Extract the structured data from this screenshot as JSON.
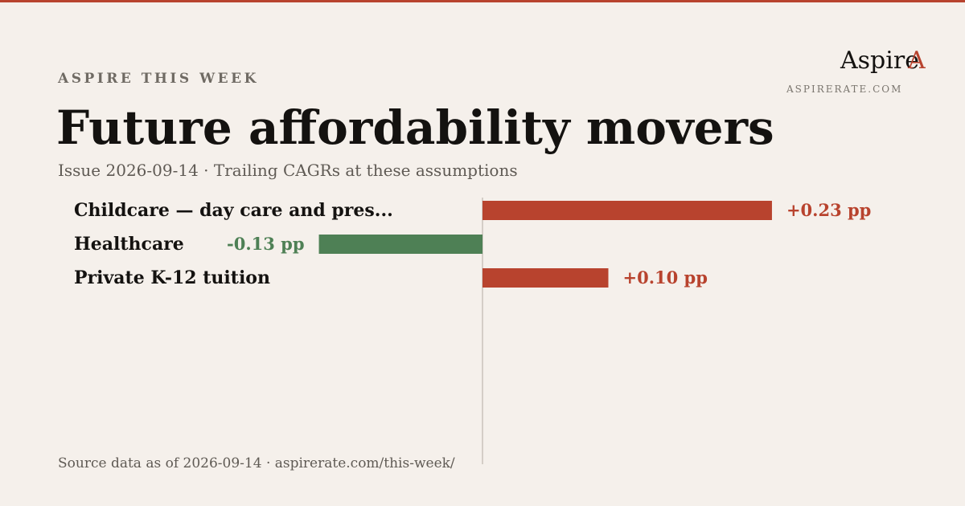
{
  "header": {
    "eyebrow": "ASPIRE THIS WEEK",
    "title": "Future affordability movers",
    "subtitle": "Issue 2026-09-14 · Trailing CAGRs at these assumptions"
  },
  "brand": {
    "name": "Aspire",
    "mark": "A",
    "url": "ASPIRERATE.COM"
  },
  "footer": {
    "source": "Source data as of 2026-09-14 · aspirerate.com/this-week/"
  },
  "colors": {
    "accent": "#b8432e",
    "positive": "#b8432e",
    "negative": "#4e8055",
    "axis": "#c9c3bb",
    "background": "#f5f0eb"
  },
  "chart_data": {
    "type": "bar",
    "orientation": "horizontal",
    "categories": [
      "Childcare — day care and pres...",
      "Healthcare",
      "Private K-12 tuition"
    ],
    "values": [
      0.23,
      -0.13,
      0.1
    ],
    "data_labels": [
      "+0.23 pp",
      "-0.13 pp",
      "+0.10 pp"
    ],
    "unit": "pp",
    "xlim": [
      -0.38,
      0.23
    ],
    "grid": false,
    "legend": "none"
  }
}
